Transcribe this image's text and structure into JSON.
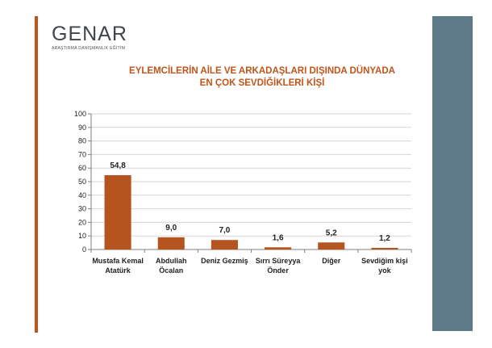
{
  "brand": {
    "name": "GENAR",
    "tagline": "ARAŞTIRMA DANIŞMANLIK EĞİTİM"
  },
  "colors": {
    "accent": "#c0541a",
    "bar": "#b5541f",
    "panel": "#5f7a89",
    "grid": "#d6d6d6"
  },
  "chart_data": {
    "type": "bar",
    "title": "EYLEMCİLERİN AİLE VE ARKADAŞLARI DIŞINDA DÜNYADA EN ÇOK SEVDİĞİKLERİ KİŞİ",
    "title_lines": [
      "EYLEMCİLERİN AİLE VE ARKADAŞLARI DIŞINDA DÜNYADA",
      "EN ÇOK SEVDİĞİKLERİ KİŞİ"
    ],
    "categories": [
      [
        "Mustafa Kemal",
        "Atatürk"
      ],
      [
        "Abdullah",
        "Öcalan"
      ],
      [
        "Deniz Gezmiş"
      ],
      [
        "Sırrı Süreyya",
        "Önder"
      ],
      [
        "Diğer"
      ],
      [
        "Sevdiğim kişi",
        "yok"
      ]
    ],
    "values": [
      54.8,
      9.0,
      7.0,
      1.6,
      5.2,
      1.2
    ],
    "value_labels": [
      "54,8",
      "9,0",
      "7,0",
      "1,6",
      "5,2",
      "1,2"
    ],
    "ylim": [
      0,
      100
    ],
    "yticks": [
      0,
      10,
      20,
      30,
      40,
      50,
      60,
      70,
      80,
      90,
      100
    ],
    "grid": true,
    "xlabel": "",
    "ylabel": ""
  }
}
